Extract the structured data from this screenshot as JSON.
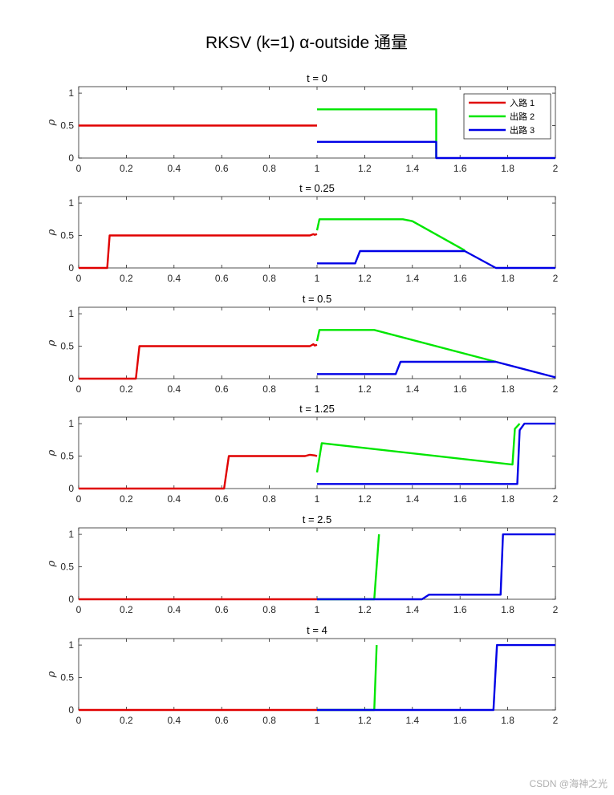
{
  "figure": {
    "title": "RKSV (k=1) α-outside 通量",
    "watermark": "CSDN @海神之光"
  },
  "colors": {
    "road1": "#e00000",
    "road2": "#00e600",
    "road3": "#0000e6"
  },
  "chart_data": [
    {
      "type": "line",
      "title": "t = 0",
      "xlabel": "",
      "ylabel": "ρ",
      "xlim": [
        0,
        2
      ],
      "ylim": [
        0,
        1.1
      ],
      "xticks": [
        0,
        0.2,
        0.4,
        0.6,
        0.8,
        1,
        1.2,
        1.4,
        1.6,
        1.8,
        2
      ],
      "yticks": [
        0,
        0.5,
        1
      ],
      "legend": {
        "position": "top-right",
        "entries": [
          "入路 1",
          "出路 2",
          "出路 3"
        ]
      },
      "series": [
        {
          "name": "入路 1",
          "color": "#e00000",
          "points": [
            [
              0,
              0.5
            ],
            [
              1,
              0.5
            ]
          ]
        },
        {
          "name": "出路 2",
          "color": "#00e600",
          "points": [
            [
              1,
              0.75
            ],
            [
              1.5,
              0.75
            ],
            [
              1.5,
              0
            ]
          ]
        },
        {
          "name": "出路 3",
          "color": "#0000e6",
          "points": [
            [
              1,
              0.25
            ],
            [
              1.5,
              0.25
            ],
            [
              1.5,
              0
            ],
            [
              2,
              0
            ]
          ]
        }
      ]
    },
    {
      "type": "line",
      "title": "t = 0.25",
      "xlabel": "",
      "ylabel": "ρ",
      "xlim": [
        0,
        2
      ],
      "ylim": [
        0,
        1.1
      ],
      "xticks": [
        0,
        0.2,
        0.4,
        0.6,
        0.8,
        1,
        1.2,
        1.4,
        1.6,
        1.8,
        2
      ],
      "yticks": [
        0,
        0.5,
        1
      ],
      "series": [
        {
          "name": "入路 1",
          "color": "#e00000",
          "points": [
            [
              0,
              0
            ],
            [
              0.12,
              0
            ],
            [
              0.13,
              0.5
            ],
            [
              0.97,
              0.5
            ],
            [
              0.985,
              0.52
            ],
            [
              0.99,
              0.51
            ],
            [
              1,
              0.52
            ]
          ]
        },
        {
          "name": "出路 2",
          "color": "#00e600",
          "points": [
            [
              1,
              0.58
            ],
            [
              1.01,
              0.75
            ],
            [
              1.36,
              0.75
            ],
            [
              1.4,
              0.72
            ],
            [
              1.62,
              0.27
            ]
          ]
        },
        {
          "name": "出路 3",
          "color": "#0000e6",
          "points": [
            [
              1,
              0.07
            ],
            [
              1.16,
              0.07
            ],
            [
              1.18,
              0.26
            ],
            [
              1.62,
              0.26
            ],
            [
              1.75,
              0
            ],
            [
              2,
              0
            ]
          ]
        }
      ]
    },
    {
      "type": "line",
      "title": "t = 0.5",
      "xlabel": "",
      "ylabel": "ρ",
      "xlim": [
        0,
        2
      ],
      "ylim": [
        0,
        1.1
      ],
      "xticks": [
        0,
        0.2,
        0.4,
        0.6,
        0.8,
        1,
        1.2,
        1.4,
        1.6,
        1.8,
        2
      ],
      "yticks": [
        0,
        0.5,
        1
      ],
      "series": [
        {
          "name": "入路 1",
          "color": "#e00000",
          "points": [
            [
              0,
              0
            ],
            [
              0.24,
              0
            ],
            [
              0.255,
              0.5
            ],
            [
              0.97,
              0.5
            ],
            [
              0.985,
              0.53
            ],
            [
              0.99,
              0.51
            ],
            [
              1,
              0.52
            ]
          ]
        },
        {
          "name": "出路 2",
          "color": "#00e600",
          "points": [
            [
              1,
              0.58
            ],
            [
              1.01,
              0.75
            ],
            [
              1.24,
              0.75
            ],
            [
              1.75,
              0.26
            ]
          ]
        },
        {
          "name": "出路 3",
          "color": "#0000e6",
          "points": [
            [
              1,
              0.07
            ],
            [
              1.33,
              0.07
            ],
            [
              1.35,
              0.26
            ],
            [
              1.75,
              0.26
            ],
            [
              2,
              0.02
            ]
          ]
        }
      ]
    },
    {
      "type": "line",
      "title": "t = 1.25",
      "xlabel": "",
      "ylabel": "ρ",
      "xlim": [
        0,
        2
      ],
      "ylim": [
        0,
        1.1
      ],
      "xticks": [
        0,
        0.2,
        0.4,
        0.6,
        0.8,
        1,
        1.2,
        1.4,
        1.6,
        1.8,
        2
      ],
      "yticks": [
        0,
        0.5,
        1
      ],
      "series": [
        {
          "name": "入路 1",
          "color": "#e00000",
          "points": [
            [
              0,
              0
            ],
            [
              0.61,
              0
            ],
            [
              0.63,
              0.5
            ],
            [
              0.95,
              0.5
            ],
            [
              0.97,
              0.52
            ],
            [
              0.99,
              0.51
            ],
            [
              1,
              0.5
            ]
          ]
        },
        {
          "name": "出路 2",
          "color": "#00e600",
          "points": [
            [
              1,
              0.25
            ],
            [
              1.02,
              0.7
            ],
            [
              1.82,
              0.37
            ],
            [
              1.83,
              0.92
            ],
            [
              1.85,
              1
            ]
          ]
        },
        {
          "name": "出路 3",
          "color": "#0000e6",
          "points": [
            [
              1,
              0.07
            ],
            [
              1.84,
              0.07
            ],
            [
              1.85,
              0.9
            ],
            [
              1.87,
              1
            ],
            [
              2,
              1
            ]
          ]
        }
      ]
    },
    {
      "type": "line",
      "title": "t = 2.5",
      "xlabel": "",
      "ylabel": "ρ",
      "xlim": [
        0,
        2
      ],
      "ylim": [
        0,
        1.1
      ],
      "xticks": [
        0,
        0.2,
        0.4,
        0.6,
        0.8,
        1,
        1.2,
        1.4,
        1.6,
        1.8,
        2
      ],
      "yticks": [
        0,
        0.5,
        1
      ],
      "series": [
        {
          "name": "入路 1",
          "color": "#e00000",
          "points": [
            [
              0,
              0
            ],
            [
              1,
              0
            ]
          ]
        },
        {
          "name": "出路 2",
          "color": "#00e600",
          "points": [
            [
              1,
              0
            ],
            [
              1.24,
              0
            ],
            [
              1.26,
              1
            ]
          ]
        },
        {
          "name": "出路 3",
          "color": "#0000e6",
          "points": [
            [
              1,
              0
            ],
            [
              1.44,
              0
            ],
            [
              1.47,
              0.07
            ],
            [
              1.77,
              0.07
            ],
            [
              1.78,
              1
            ],
            [
              2,
              1
            ]
          ]
        }
      ]
    },
    {
      "type": "line",
      "title": "t = 4",
      "xlabel": "",
      "ylabel": "ρ",
      "xlim": [
        0,
        2
      ],
      "ylim": [
        0,
        1.1
      ],
      "xticks": [
        0,
        0.2,
        0.4,
        0.6,
        0.8,
        1,
        1.2,
        1.4,
        1.6,
        1.8,
        2
      ],
      "yticks": [
        0,
        0.5,
        1
      ],
      "series": [
        {
          "name": "入路 1",
          "color": "#e00000",
          "points": [
            [
              0,
              0
            ],
            [
              1,
              0
            ]
          ]
        },
        {
          "name": "出路 2",
          "color": "#00e600",
          "points": [
            [
              1,
              0
            ],
            [
              1.24,
              0
            ],
            [
              1.25,
              1
            ]
          ]
        },
        {
          "name": "出路 3",
          "color": "#0000e6",
          "points": [
            [
              1,
              0
            ],
            [
              1.74,
              0
            ],
            [
              1.755,
              1
            ],
            [
              2,
              1
            ]
          ]
        }
      ]
    }
  ]
}
